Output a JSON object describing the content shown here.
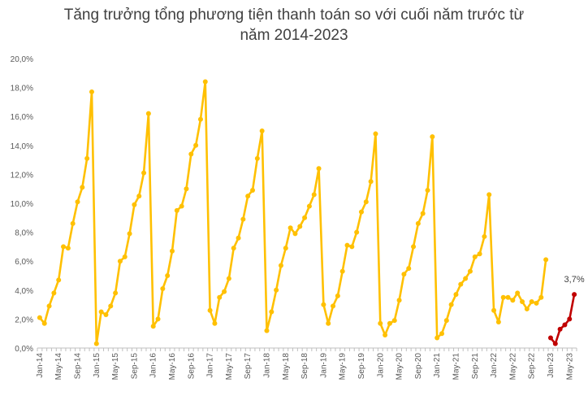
{
  "chart_data": {
    "type": "line",
    "title_line1": "Tăng trưởng tổng phương tiện thanh  toán so với cuối năm trước từ",
    "title_line2": "năm 2014-2023",
    "xlabel": "",
    "ylabel": "",
    "ylim": [
      0,
      20
    ],
    "y_ticks": [
      "0,0%",
      "2,0%",
      "4,0%",
      "6,0%",
      "8,0%",
      "10,0%",
      "12,0%",
      "14,0%",
      "16,0%",
      "18,0%",
      "20,0%"
    ],
    "x_tick_labels": [
      "Jan-14",
      "May-14",
      "Sep-14",
      "Jan-15",
      "May-15",
      "Sep-15",
      "Jan-16",
      "May-16",
      "Sep-16",
      "Jan-17",
      "May-17",
      "Sep-17",
      "Jan-18",
      "May-18",
      "Sep-18",
      "Jan-19",
      "May-19",
      "Sep-19",
      "Jan-20",
      "May-20",
      "Sep-20",
      "Jan-21",
      "May-21",
      "Sep-21",
      "Jan-22",
      "May-22",
      "Sep-22",
      "Jan-23",
      "May-23"
    ],
    "grid": false,
    "legend": "none",
    "annotation": "3,7%",
    "series": [
      {
        "color": "#FFC000",
        "start_index": 0,
        "values": [
          2.1,
          1.7,
          2.9,
          3.8,
          4.7,
          7.0,
          6.9,
          8.6,
          10.1,
          11.1,
          13.1,
          17.7,
          0.3,
          2.5,
          2.3,
          2.9,
          3.8,
          6.0,
          6.3,
          7.9,
          9.9,
          10.5,
          12.1,
          16.2,
          1.5,
          2.0,
          4.1,
          5.0,
          6.7,
          9.5,
          9.8,
          11.0,
          13.4,
          14.0,
          15.8,
          18.4,
          2.6,
          1.7,
          3.5,
          3.9,
          4.8,
          6.9,
          7.6,
          8.9,
          10.5,
          10.9,
          13.1,
          15.0,
          1.2,
          2.5,
          4.0,
          5.7,
          6.9,
          8.3,
          7.9,
          8.4,
          9.0,
          9.8,
          10.6,
          12.4,
          3.0,
          1.7,
          2.9,
          3.6,
          5.3,
          7.1,
          7.0,
          8.0,
          9.4,
          10.1,
          11.5,
          14.8,
          1.7,
          0.9,
          1.7,
          1.9,
          3.3,
          5.1,
          5.5,
          7.0,
          8.6,
          9.3,
          10.9,
          14.6,
          0.7,
          1.0,
          1.9,
          3.0,
          3.7,
          4.4,
          4.8,
          5.3,
          6.3,
          6.5,
          7.7,
          10.6,
          2.6,
          1.8,
          3.5,
          3.5,
          3.3,
          3.8,
          3.2,
          2.7,
          3.2,
          3.1,
          3.5,
          6.1
        ]
      },
      {
        "color": "#C00000",
        "start_index": 108,
        "values": [
          0.7,
          0.3,
          1.3,
          1.6,
          2.0,
          3.7
        ]
      }
    ]
  }
}
